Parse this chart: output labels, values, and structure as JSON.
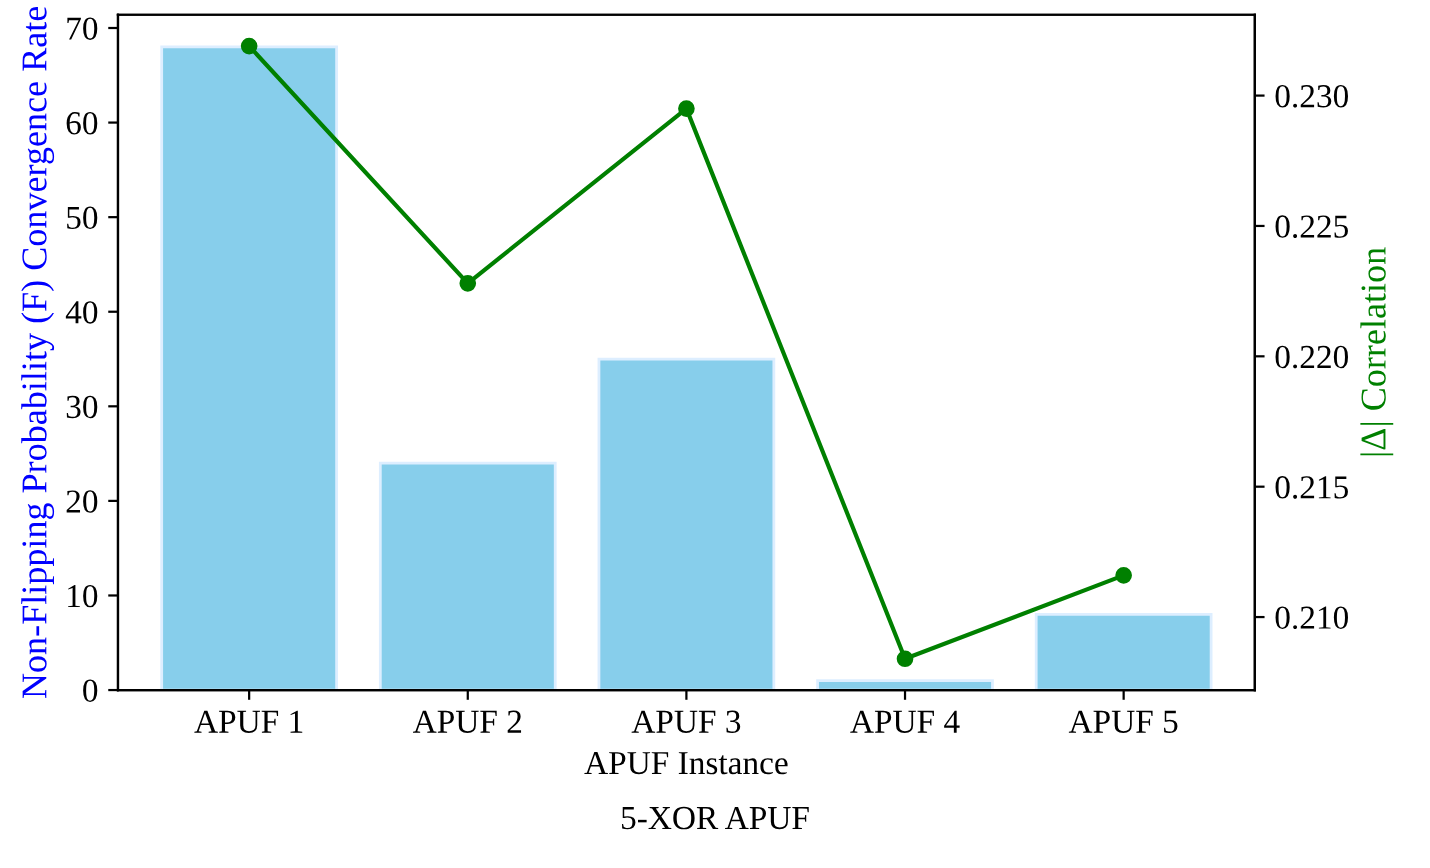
{
  "chart_data": {
    "type": "bar",
    "title": "5-XOR APUF",
    "xlabel": "APUF Instance",
    "ylabel": "Non-Flipping Probability (F) Convergence Rate",
    "y2label": "|Δ| Correlation",
    "categories": [
      "APUF 1",
      "APUF 2",
      "APUF 3",
      "APUF 4",
      "APUF 5"
    ],
    "series": [
      {
        "color": "#87ceeb",
        "values": [
          68,
          24,
          35,
          1,
          8
        ]
      },
      {
        "type": "line",
        "axis": "y2",
        "color": "#008000",
        "marker": "circle",
        "values": [
          0.2319,
          0.2228,
          0.2295,
          0.2084,
          0.2116
        ]
      }
    ],
    "ylim": [
      0,
      71.4
    ],
    "yticks": [
      0,
      10,
      20,
      30,
      40,
      50,
      60,
      70
    ],
    "y2lim": [
      0.2072,
      0.2331
    ],
    "y2ticks": [
      {
        "value": 0.21,
        "label": "0.210"
      },
      {
        "value": 0.215,
        "label": "0.215"
      },
      {
        "value": 0.22,
        "label": "0.220"
      },
      {
        "value": 0.225,
        "label": "0.225"
      },
      {
        "value": 0.23,
        "label": "0.230"
      }
    ],
    "grid": false
  }
}
